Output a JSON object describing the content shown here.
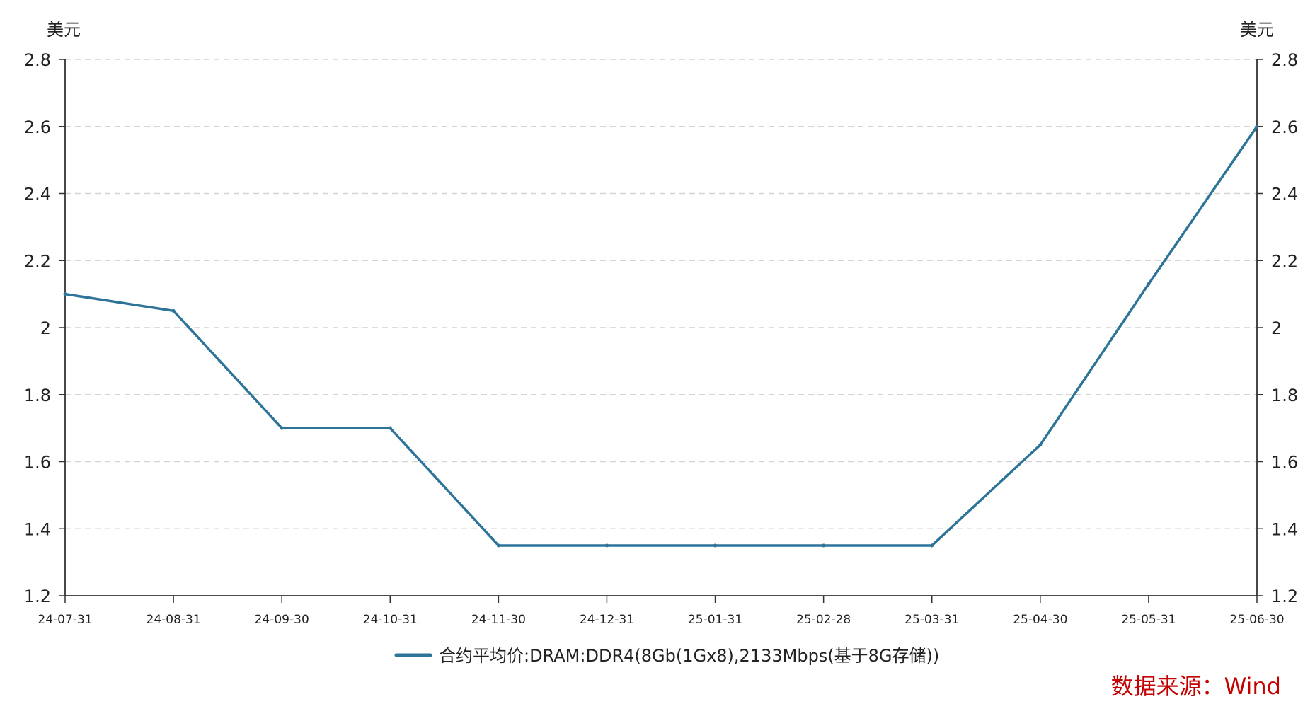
{
  "chart_data": {
    "type": "line",
    "x": [
      "24-07-31",
      "24-08-31",
      "24-09-30",
      "24-10-31",
      "24-11-30",
      "24-12-31",
      "25-01-31",
      "25-02-28",
      "25-03-31",
      "25-04-30",
      "25-05-31",
      "25-06-30"
    ],
    "series": [
      {
        "name": "合约平均价:DRAM:DDR4(8Gb(1Gx8),2133Mbps(基于8G存储))",
        "values": [
          2.1,
          2.05,
          1.7,
          1.7,
          1.35,
          1.35,
          1.35,
          1.35,
          1.35,
          1.65,
          2.13,
          2.6
        ],
        "color": "#2e7499"
      }
    ],
    "y_ticks": [
      "1.2",
      "1.4",
      "1.6",
      "1.8",
      "2",
      "2.2",
      "2.4",
      "2.6",
      "2.8"
    ],
    "ylim": [
      1.2,
      2.8
    ],
    "ylabel_left": "美元",
    "ylabel_right": "美元",
    "grid": "horizontal-dashed",
    "legend_position": "bottom-center"
  },
  "source": "数据来源：Wind"
}
